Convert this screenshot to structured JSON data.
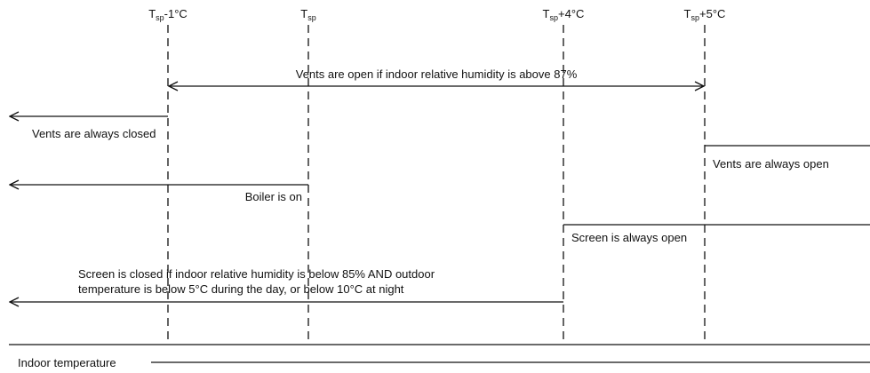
{
  "thresholds": [
    {
      "base": "T",
      "sub": "sp",
      "suffix": "-1°C"
    },
    {
      "base": "T",
      "sub": "sp",
      "suffix": ""
    },
    {
      "base": "T",
      "sub": "sp",
      "suffix": "+4°C"
    },
    {
      "base": "T",
      "sub": "sp",
      "suffix": "+5°C"
    }
  ],
  "rules": {
    "vents_humidity": "Vents are open if indoor relative humidity is above 87%",
    "vents_closed": "Vents are always closed",
    "vents_open": "Vents are always open",
    "boiler_on": "Boiler is on",
    "screen_open": "Screen is always open",
    "screen_closed": [
      "Screen is closed if indoor relative humidity is below 85% AND outdoor",
      "temperature is below 5°C during the day, or below 10°C at night"
    ]
  },
  "axis_label": "Indoor temperature"
}
